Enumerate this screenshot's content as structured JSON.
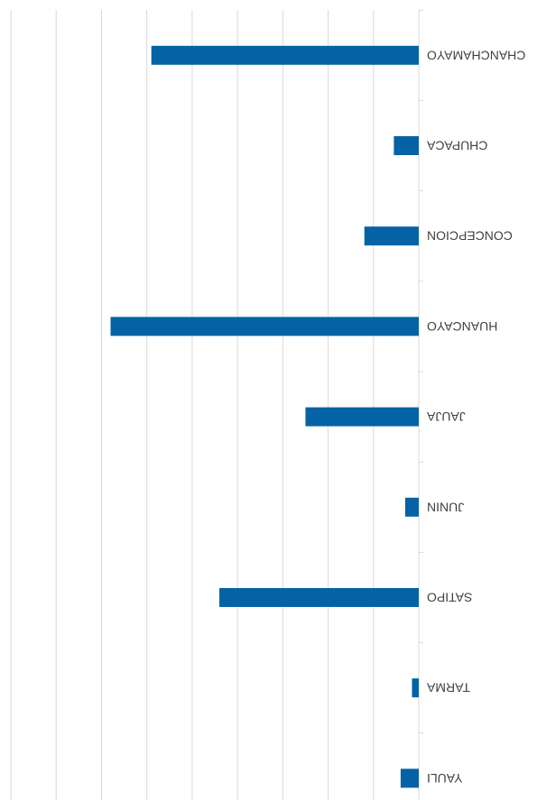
{
  "chart_data": {
    "type": "bar",
    "orientation": "horizontal",
    "display_rotation_degrees": 180,
    "categories": [
      "YAULI",
      "TARMA",
      "SATIPO",
      "JUNIN",
      "JAUJA",
      "HUANCAYO",
      "CONCEPCION",
      "CHUPACA",
      "CHANCHAMAYO"
    ],
    "values": [
      4,
      1.5,
      44,
      3,
      25,
      68,
      12,
      5.5,
      59
    ],
    "xlim": [
      0,
      90
    ],
    "grid": true,
    "bar_color": "#0563A5",
    "grid_color": "#D9D9D9",
    "axis_color": "#D9D9D9",
    "label_color": "#404040",
    "title": "",
    "xlabel": "",
    "ylabel": ""
  }
}
